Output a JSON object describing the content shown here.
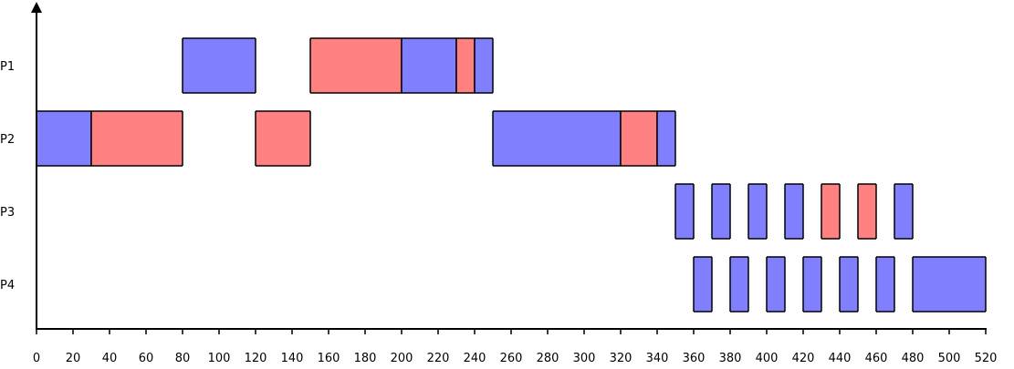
{
  "chart_data": {
    "type": "gantt",
    "title": "",
    "xlabel": "",
    "ylabel": "",
    "xlim": [
      0,
      520
    ],
    "x_ticks": [
      0,
      20,
      40,
      60,
      80,
      100,
      120,
      140,
      160,
      180,
      200,
      220,
      240,
      260,
      280,
      300,
      320,
      340,
      360,
      380,
      400,
      420,
      440,
      460,
      480,
      500,
      520
    ],
    "rows": [
      "P1",
      "P2",
      "P3",
      "P4"
    ],
    "colors": {
      "blue": "#8080ff",
      "red": "#ff8080",
      "border": "#000000"
    },
    "grid": false,
    "tasks": [
      {
        "row": "P1",
        "start": 80,
        "end": 120,
        "color": "blue"
      },
      {
        "row": "P1",
        "start": 150,
        "end": 200,
        "color": "red"
      },
      {
        "row": "P1",
        "start": 200,
        "end": 230,
        "color": "blue"
      },
      {
        "row": "P1",
        "start": 230,
        "end": 240,
        "color": "red"
      },
      {
        "row": "P1",
        "start": 240,
        "end": 250,
        "color": "blue"
      },
      {
        "row": "P2",
        "start": 0,
        "end": 30,
        "color": "blue"
      },
      {
        "row": "P2",
        "start": 30,
        "end": 80,
        "color": "red"
      },
      {
        "row": "P2",
        "start": 120,
        "end": 150,
        "color": "red"
      },
      {
        "row": "P2",
        "start": 250,
        "end": 320,
        "color": "blue"
      },
      {
        "row": "P2",
        "start": 320,
        "end": 340,
        "color": "red"
      },
      {
        "row": "P2",
        "start": 340,
        "end": 350,
        "color": "blue"
      },
      {
        "row": "P3",
        "start": 350,
        "end": 360,
        "color": "blue"
      },
      {
        "row": "P3",
        "start": 370,
        "end": 380,
        "color": "blue"
      },
      {
        "row": "P3",
        "start": 390,
        "end": 400,
        "color": "blue"
      },
      {
        "row": "P3",
        "start": 410,
        "end": 420,
        "color": "blue"
      },
      {
        "row": "P3",
        "start": 430,
        "end": 440,
        "color": "red"
      },
      {
        "row": "P3",
        "start": 450,
        "end": 460,
        "color": "red"
      },
      {
        "row": "P3",
        "start": 470,
        "end": 480,
        "color": "blue"
      },
      {
        "row": "P4",
        "start": 360,
        "end": 370,
        "color": "blue"
      },
      {
        "row": "P4",
        "start": 380,
        "end": 390,
        "color": "blue"
      },
      {
        "row": "P4",
        "start": 400,
        "end": 410,
        "color": "blue"
      },
      {
        "row": "P4",
        "start": 420,
        "end": 430,
        "color": "blue"
      },
      {
        "row": "P4",
        "start": 440,
        "end": 450,
        "color": "blue"
      },
      {
        "row": "P4",
        "start": 460,
        "end": 470,
        "color": "blue"
      },
      {
        "row": "P4",
        "start": 480,
        "end": 520,
        "color": "blue"
      }
    ]
  }
}
